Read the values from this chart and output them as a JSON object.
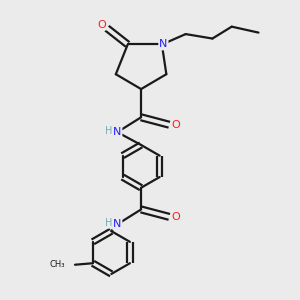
{
  "bg_color": "#ebebeb",
  "bond_color": "#1a1a1a",
  "N_color": "#1f1fff",
  "O_color": "#ff1f1f",
  "H_color": "#888888",
  "line_width": 1.6,
  "fig_size": [
    3.0,
    3.0
  ],
  "dpi": 100,
  "xlim": [
    0,
    10
  ],
  "ylim": [
    0,
    10
  ]
}
